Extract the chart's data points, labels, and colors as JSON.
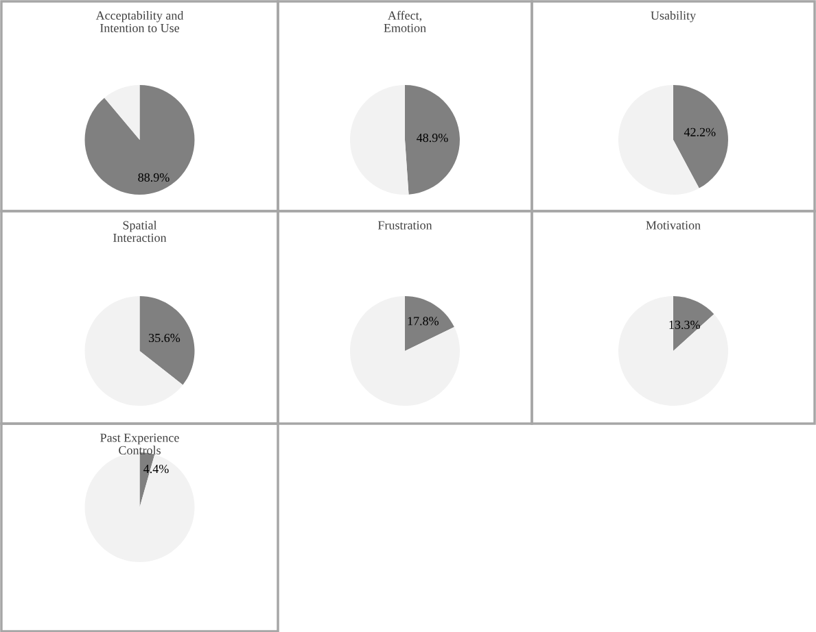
{
  "chart_data": [
    {
      "type": "pie",
      "title": "Acceptability and\nIntention to Use",
      "categories": [
        null,
        null
      ],
      "values": [
        88.9,
        11.1
      ],
      "colors": [
        "#808080",
        "#f2f2f2"
      ],
      "value_labels": [
        "88.9%",
        null
      ]
    },
    {
      "type": "pie",
      "title": "Affect,\nEmotion",
      "categories": [
        null,
        null
      ],
      "values": [
        48.9,
        51.1
      ],
      "colors": [
        "#808080",
        "#f2f2f2"
      ],
      "value_labels": [
        "48.9%",
        null
      ]
    },
    {
      "type": "pie",
      "title": "Usability",
      "categories": [
        null,
        null
      ],
      "values": [
        42.2,
        57.8
      ],
      "colors": [
        "#808080",
        "#f2f2f2"
      ],
      "value_labels": [
        "42.2%",
        null
      ]
    },
    {
      "type": "pie",
      "title": "Spatial\nInteraction",
      "categories": [
        null,
        null
      ],
      "values": [
        35.6,
        64.4
      ],
      "colors": [
        "#808080",
        "#f2f2f2"
      ],
      "value_labels": [
        "35.6%",
        null
      ]
    },
    {
      "type": "pie",
      "title": "Frustration",
      "categories": [
        null,
        null
      ],
      "values": [
        17.8,
        82.2
      ],
      "colors": [
        "#808080",
        "#f2f2f2"
      ],
      "value_labels": [
        "17.8%",
        null
      ]
    },
    {
      "type": "pie",
      "title": "Motivation",
      "categories": [
        null,
        null
      ],
      "values": [
        13.3,
        86.7
      ],
      "colors": [
        "#808080",
        "#f2f2f2"
      ],
      "value_labels": [
        "13.3%",
        null
      ]
    },
    {
      "type": "pie",
      "title": "Past Experience\nControls",
      "categories": [
        null,
        null
      ],
      "values": [
        4.4,
        95.6
      ],
      "colors": [
        "#808080",
        "#f2f2f2"
      ],
      "value_labels": [
        "4.4%",
        null
      ]
    }
  ]
}
